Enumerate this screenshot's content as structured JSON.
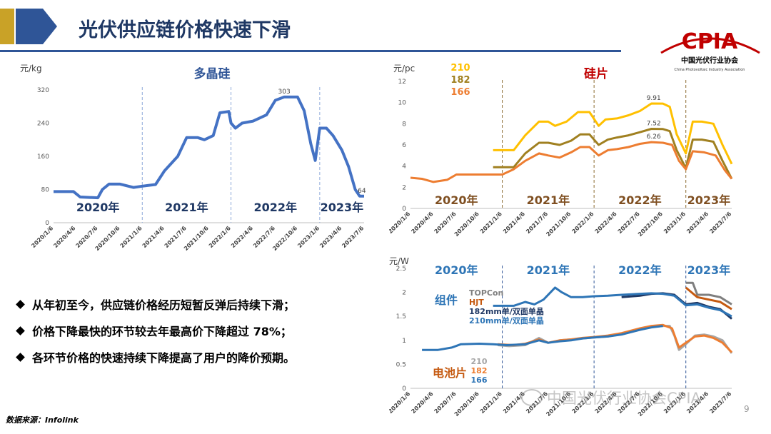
{
  "header": {
    "title": "光伏供应链价格快速下滑"
  },
  "logo": {
    "name": "CPIA",
    "cn": "中国光伏行业协会",
    "en": "China Photovoltaic Industry Association"
  },
  "colors": {
    "title": "#1f3864",
    "accent_blue": "#2f5597",
    "logo_red": "#c00000",
    "gold": "#c9a227"
  },
  "bullets": [
    "从年初至今，供应链价格经历短暂反弹后持续下滑；",
    "价格下降最快的环节较去年最高价下降超过 78%；",
    "各环节价格的快速持续下降提高了用户的降价预期。"
  ],
  "source": "数据来源：Infolink",
  "watermark": "中国光伏行业协会CPIA",
  "page_number": "9",
  "chart_data": [
    {
      "type": "line",
      "title": "多晶硅",
      "ylabel": "元/kg",
      "ylim": [
        0,
        320
      ],
      "yticks": [
        "0",
        "80",
        "160",
        "240",
        "320"
      ],
      "x_dates": [
        "2020/1/6",
        "2020/4/6",
        "2020/7/6",
        "2020/10/6",
        "2021/1/6",
        "2021/4/6",
        "2021/7/6",
        "2021/10/6",
        "2022/1/6",
        "2022/4/6",
        "2022/7/6",
        "2022/10/6",
        "2023/1/6",
        "2023/4/6",
        "2023/7/6"
      ],
      "years": [
        "2020年",
        "2021年",
        "2022年",
        "2023年"
      ],
      "annotations": [
        {
          "label": "303",
          "x": 10.4,
          "y": 303
        },
        {
          "label": "64",
          "x": 13.9,
          "y": 64
        }
      ],
      "series": [
        {
          "name": "多晶硅",
          "color": "#4472c4",
          "points": [
            [
              0,
              75
            ],
            [
              0.9,
              75
            ],
            [
              1.2,
              62
            ],
            [
              2,
              60
            ],
            [
              2.2,
              80
            ],
            [
              2.5,
              93
            ],
            [
              3,
              93
            ],
            [
              3.6,
              85
            ],
            [
              4,
              88
            ],
            [
              4.6,
              92
            ],
            [
              5,
              125
            ],
            [
              5.6,
              160
            ],
            [
              6,
              205
            ],
            [
              6.5,
              205
            ],
            [
              6.8,
              200
            ],
            [
              7.2,
              210
            ],
            [
              7.5,
              265
            ],
            [
              7.9,
              268
            ],
            [
              8,
              240
            ],
            [
              8.2,
              228
            ],
            [
              8.5,
              240
            ],
            [
              9,
              245
            ],
            [
              9.6,
              260
            ],
            [
              10,
              295
            ],
            [
              10.4,
              303
            ],
            [
              11,
              303
            ],
            [
              11.3,
              270
            ],
            [
              11.6,
              190
            ],
            [
              11.8,
              150
            ],
            [
              12,
              228
            ],
            [
              12.3,
              228
            ],
            [
              12.6,
              210
            ],
            [
              13,
              175
            ],
            [
              13.3,
              135
            ],
            [
              13.6,
              80
            ],
            [
              13.8,
              64
            ],
            [
              14,
              64
            ]
          ]
        }
      ]
    },
    {
      "type": "line",
      "title": "硅片",
      "ylabel": "元/pc",
      "ylim": [
        0,
        12
      ],
      "yticks": [
        "0",
        "2",
        "4",
        "6",
        "8",
        "10",
        "12"
      ],
      "x_dates": [
        "2020/1/6",
        "2020/4/6",
        "2020/7/6",
        "2020/10/6",
        "2021/1/6",
        "2021/4/6",
        "2021/7/6",
        "2021/10/6",
        "2022/1/6",
        "2022/4/6",
        "2022/7/6",
        "2022/10/6",
        "2023/1/6",
        "2023/4/6",
        "2023/7/6"
      ],
      "years": [
        "2020年",
        "2021年",
        "2022年",
        "2023年"
      ],
      "annotations": [
        {
          "label": "9.91",
          "x": 10.6,
          "y": 9.91
        },
        {
          "label": "7.52",
          "x": 10.6,
          "y": 7.52
        },
        {
          "label": "6.26",
          "x": 10.6,
          "y": 6.26
        }
      ],
      "series": [
        {
          "name": "210",
          "color": "#ffc000",
          "points": [
            [
              3.6,
              5.5
            ],
            [
              4.5,
              5.5
            ],
            [
              5,
              6.9
            ],
            [
              5.6,
              8.2
            ],
            [
              6,
              8.2
            ],
            [
              6.3,
              7.8
            ],
            [
              6.8,
              8.2
            ],
            [
              7.3,
              9.1
            ],
            [
              7.8,
              9.1
            ],
            [
              8.2,
              7.8
            ],
            [
              8.5,
              8.4
            ],
            [
              9,
              8.5
            ],
            [
              9.5,
              8.8
            ],
            [
              10,
              9.2
            ],
            [
              10.5,
              9.91
            ],
            [
              11,
              9.9
            ],
            [
              11.3,
              9.6
            ],
            [
              11.6,
              7
            ],
            [
              12,
              5.2
            ],
            [
              12.3,
              8.2
            ],
            [
              12.7,
              8.2
            ],
            [
              13.2,
              8
            ],
            [
              13.6,
              6
            ],
            [
              14,
              4.2
            ]
          ]
        },
        {
          "name": "182",
          "color": "#a08020",
          "points": [
            [
              3.6,
              3.9
            ],
            [
              4.5,
              3.9
            ],
            [
              5,
              5.2
            ],
            [
              5.6,
              6.2
            ],
            [
              6,
              6.2
            ],
            [
              6.5,
              6.0
            ],
            [
              7,
              6.4
            ],
            [
              7.4,
              7
            ],
            [
              7.8,
              7
            ],
            [
              8.2,
              6
            ],
            [
              8.6,
              6.5
            ],
            [
              9,
              6.7
            ],
            [
              9.5,
              6.9
            ],
            [
              10,
              7.2
            ],
            [
              10.5,
              7.52
            ],
            [
              11,
              7.5
            ],
            [
              11.3,
              7.3
            ],
            [
              11.6,
              5.5
            ],
            [
              12,
              3.8
            ],
            [
              12.3,
              6.5
            ],
            [
              12.7,
              6.5
            ],
            [
              13.2,
              6.3
            ],
            [
              13.6,
              4.5
            ],
            [
              14,
              2.8
            ]
          ]
        },
        {
          "name": "166",
          "color": "#ed7d31",
          "points": [
            [
              0,
              2.9
            ],
            [
              0.5,
              2.8
            ],
            [
              1,
              2.5
            ],
            [
              1.6,
              2.7
            ],
            [
              2,
              3.2
            ],
            [
              3,
              3.2
            ],
            [
              4,
              3.2
            ],
            [
              4.5,
              3.7
            ],
            [
              5,
              4.5
            ],
            [
              5.6,
              5.2
            ],
            [
              6,
              5
            ],
            [
              6.5,
              4.8
            ],
            [
              7,
              5.3
            ],
            [
              7.4,
              5.8
            ],
            [
              7.8,
              5.8
            ],
            [
              8.2,
              5
            ],
            [
              8.6,
              5.5
            ],
            [
              9,
              5.6
            ],
            [
              9.5,
              5.8
            ],
            [
              10,
              6.1
            ],
            [
              10.5,
              6.26
            ],
            [
              11,
              6.2
            ],
            [
              11.4,
              6
            ],
            [
              11.7,
              4.5
            ],
            [
              12,
              3.7
            ],
            [
              12.3,
              5.4
            ],
            [
              12.8,
              5.3
            ],
            [
              13.3,
              5
            ],
            [
              13.7,
              3.6
            ],
            [
              14,
              2.8
            ]
          ]
        }
      ],
      "legend": [
        "210",
        "182",
        "166"
      ]
    },
    {
      "type": "line",
      "ylabel": "元/W",
      "ylim": [
        0,
        2.5
      ],
      "yticks": [
        "0",
        "0.5",
        "1",
        "1.5",
        "2",
        "2.5"
      ],
      "x_dates": [
        "2020/1/6",
        "2020/4/6",
        "2020/7/6",
        "2020/10/6",
        "2021/1/6",
        "2021/4/6",
        "2021/7/6",
        "2021/10/6",
        "2022/1/6",
        "2022/4/6",
        "2022/7/6",
        "2022/10/6",
        "2023/1/6",
        "2023/4/6",
        "2023/7/6"
      ],
      "years": [
        "2020年",
        "2021年",
        "2022年",
        "2023年"
      ],
      "module_label": "组件",
      "cell_label": "电池片",
      "module_legend": [
        {
          "name": "TOPCon",
          "color": "#7f7f7f"
        },
        {
          "name": "HJT",
          "color": "#c55a11"
        },
        {
          "name": "182mm单/双面单晶",
          "color": "#1f3864"
        },
        {
          "name": "210mm单/双面单晶",
          "color": "#2e75b6"
        }
      ],
      "cell_legend": [
        {
          "name": "210",
          "color": "#a6a6a6"
        },
        {
          "name": "182",
          "color": "#ed7d31"
        },
        {
          "name": "166",
          "color": "#2e75b6"
        }
      ],
      "series": [
        {
          "name": "TOPCon",
          "color": "#7f7f7f",
          "points": [
            [
              12,
              2.2
            ],
            [
              12.3,
              2.2
            ],
            [
              12.5,
              1.95
            ],
            [
              13,
              1.95
            ],
            [
              13.5,
              1.9
            ],
            [
              14,
              1.75
            ]
          ]
        },
        {
          "name": "HJT",
          "color": "#c55a11",
          "points": [
            [
              12,
              2.1
            ],
            [
              12.5,
              1.9
            ],
            [
              13,
              1.85
            ],
            [
              13.5,
              1.8
            ],
            [
              14,
              1.65
            ]
          ]
        },
        {
          "name": "182mm单/双面单晶",
          "color": "#1f3864",
          "points": [
            [
              9.2,
              1.9
            ],
            [
              10,
              1.93
            ],
            [
              10.5,
              1.97
            ],
            [
              11,
              1.98
            ],
            [
              11.5,
              1.95
            ],
            [
              12,
              1.75
            ],
            [
              12.5,
              1.78
            ],
            [
              13,
              1.7
            ],
            [
              13.5,
              1.65
            ],
            [
              14,
              1.45
            ]
          ]
        },
        {
          "name": "210mm单/双面单晶",
          "color": "#2e75b6",
          "points": [
            [
              3.6,
              1.72
            ],
            [
              4.5,
              1.72
            ],
            [
              5,
              1.8
            ],
            [
              5.4,
              1.75
            ],
            [
              5.8,
              1.85
            ],
            [
              6.3,
              2.1
            ],
            [
              6.6,
              2.0
            ],
            [
              7,
              1.9
            ],
            [
              7.5,
              1.9
            ],
            [
              8,
              1.92
            ],
            [
              8.6,
              1.93
            ],
            [
              9.2,
              1.95
            ],
            [
              10,
              1.97
            ],
            [
              10.5,
              1.98
            ],
            [
              11,
              1.97
            ],
            [
              11.5,
              1.93
            ],
            [
              12,
              1.73
            ],
            [
              12.5,
              1.75
            ],
            [
              13,
              1.68
            ],
            [
              13.5,
              1.63
            ],
            [
              14,
              1.5
            ]
          ]
        },
        {
          "name": "电池片210",
          "color": "#a6a6a6",
          "points": [
            [
              3.8,
              0.9
            ],
            [
              4.3,
              0.88
            ],
            [
              5,
              0.9
            ],
            [
              5.6,
              1.05
            ],
            [
              6,
              0.95
            ],
            [
              6.5,
              1.0
            ],
            [
              7,
              1.02
            ],
            [
              7.5,
              1.04
            ],
            [
              8,
              1.06
            ],
            [
              8.6,
              1.08
            ],
            [
              9.2,
              1.13
            ],
            [
              10,
              1.22
            ],
            [
              10.5,
              1.28
            ],
            [
              11,
              1.3
            ],
            [
              11.3,
              1.3
            ],
            [
              11.5,
              1.1
            ],
            [
              11.7,
              0.8
            ],
            [
              12,
              0.92
            ],
            [
              12.4,
              1.1
            ],
            [
              12.8,
              1.12
            ],
            [
              13.2,
              1.08
            ],
            [
              13.6,
              1.0
            ],
            [
              14,
              0.73
            ]
          ]
        },
        {
          "name": "电池片182",
          "color": "#ed7d31",
          "points": [
            [
              3.8,
              0.92
            ],
            [
              4.5,
              0.9
            ],
            [
              5,
              0.93
            ],
            [
              5.6,
              1.02
            ],
            [
              6,
              0.95
            ],
            [
              6.5,
              1.0
            ],
            [
              7,
              1.02
            ],
            [
              7.5,
              1.05
            ],
            [
              8,
              1.07
            ],
            [
              8.6,
              1.1
            ],
            [
              9.2,
              1.15
            ],
            [
              10,
              1.25
            ],
            [
              10.5,
              1.3
            ],
            [
              11,
              1.32
            ],
            [
              11.4,
              1.25
            ],
            [
              11.7,
              0.85
            ],
            [
              12,
              0.95
            ],
            [
              12.4,
              1.08
            ],
            [
              12.8,
              1.1
            ],
            [
              13.2,
              1.05
            ],
            [
              13.6,
              0.95
            ],
            [
              14,
              0.75
            ]
          ]
        },
        {
          "name": "电池片166",
          "color": "#2e75b6",
          "points": [
            [
              0.5,
              0.8
            ],
            [
              1.2,
              0.8
            ],
            [
              1.8,
              0.85
            ],
            [
              2.2,
              0.92
            ],
            [
              3,
              0.93
            ],
            [
              3.6,
              0.92
            ],
            [
              4.2,
              0.9
            ],
            [
              5,
              0.92
            ],
            [
              5.6,
              1.0
            ],
            [
              6,
              0.95
            ],
            [
              6.5,
              0.98
            ],
            [
              7,
              1.0
            ],
            [
              7.5,
              1.04
            ],
            [
              8,
              1.06
            ],
            [
              8.6,
              1.08
            ],
            [
              9.2,
              1.12
            ],
            [
              10,
              1.22
            ],
            [
              10.5,
              1.27
            ],
            [
              11,
              1.3
            ]
          ]
        }
      ]
    }
  ]
}
